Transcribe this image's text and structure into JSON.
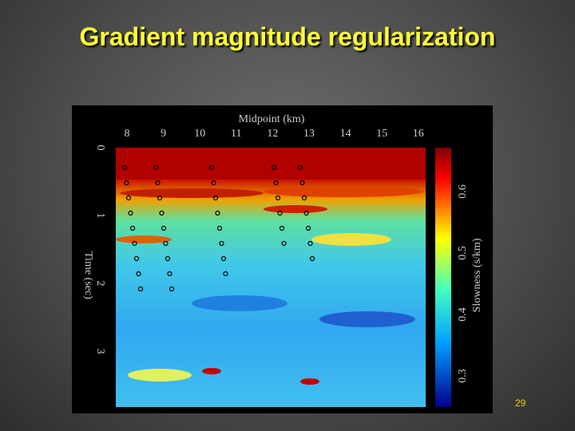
{
  "slide": {
    "title": "Gradient magnitude regularization",
    "page_number": 29
  },
  "figure": {
    "x_label": "Midpoint (km)",
    "x_ticks": [
      8,
      9,
      10,
      11,
      12,
      13,
      14,
      15,
      16
    ],
    "y_label": "Time (sec)",
    "y_ticks": [
      0,
      1,
      2,
      3
    ],
    "colorbar_label": "Slowness (s/km)",
    "colorbar_ticks": [
      0.6,
      0.5,
      0.4,
      0.3
    ]
  }
}
